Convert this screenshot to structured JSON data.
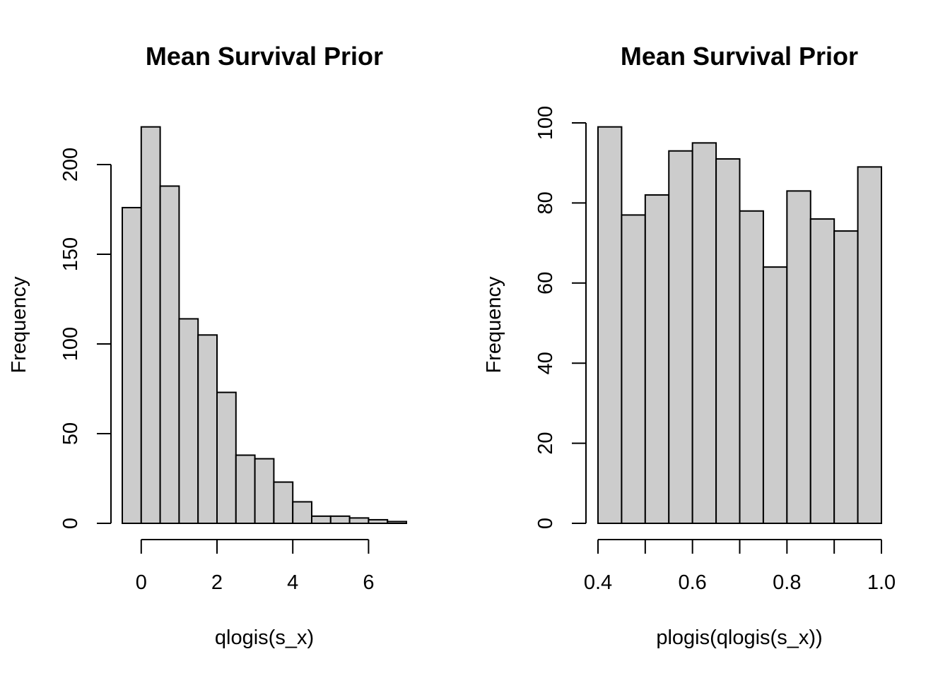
{
  "chart_data": [
    {
      "type": "bar",
      "title": "Mean Survival Prior",
      "xlabel": "qlogis(s_x)",
      "ylabel": "Frequency",
      "bin_edges": [
        -0.5,
        0,
        0.5,
        1,
        1.5,
        2,
        2.5,
        3,
        3.5,
        4,
        4.5,
        5,
        5.5,
        6,
        6.5,
        7
      ],
      "values": [
        176,
        221,
        188,
        114,
        105,
        73,
        38,
        36,
        23,
        12,
        4,
        4,
        3,
        2,
        1
      ],
      "xlim": [
        -0.5,
        7
      ],
      "ylim": [
        0,
        221
      ],
      "xticks": [
        0,
        2,
        4,
        6
      ],
      "xtick_labels": [
        "0",
        "2",
        "4",
        "6"
      ],
      "yticks": [
        0,
        50,
        100,
        150,
        200
      ],
      "ytick_labels": [
        "0",
        "50",
        "100",
        "150",
        "200"
      ],
      "bar_color": "#cccccc"
    },
    {
      "type": "bar",
      "title": "Mean Survival Prior",
      "xlabel": "plogis(qlogis(s_x))",
      "ylabel": "Frequency",
      "bin_edges": [
        0.4,
        0.45,
        0.5,
        0.55,
        0.6,
        0.65,
        0.7,
        0.75,
        0.8,
        0.85,
        0.9,
        0.95,
        1.0
      ],
      "values": [
        99,
        77,
        82,
        93,
        95,
        91,
        78,
        64,
        83,
        76,
        73,
        89
      ],
      "xlim": [
        0.4,
        1.0
      ],
      "ylim": [
        0,
        100
      ],
      "xticks": [
        0.4,
        0.5,
        0.6,
        0.7,
        0.8,
        0.9,
        1.0
      ],
      "xtick_labels": [
        "0.4",
        "",
        "0.6",
        "",
        "0.8",
        "",
        "1.0"
      ],
      "yticks": [
        0,
        20,
        40,
        60,
        80,
        100
      ],
      "ytick_labels": [
        "0",
        "20",
        "40",
        "60",
        "80",
        "100"
      ],
      "bar_color": "#cccccc"
    }
  ]
}
